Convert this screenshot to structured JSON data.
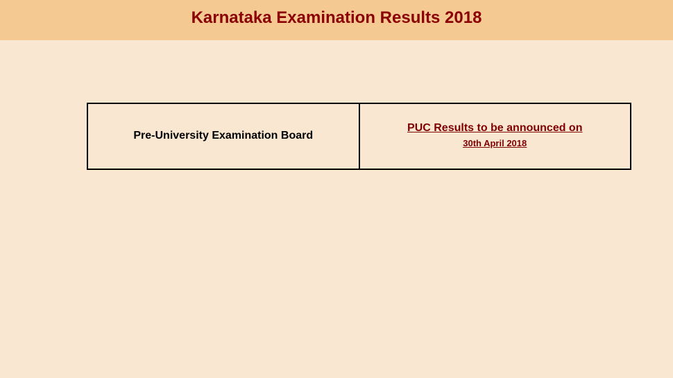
{
  "header": {
    "title": "Karnataka Examination Results 2018",
    "background_color": "#f5ca92",
    "title_color": "#8b0000",
    "title_fontsize": 24
  },
  "page": {
    "background_color": "#f9e7d2"
  },
  "results_table": {
    "border_color": "#000000",
    "rows": [
      {
        "board_name": "Pre-University Examination Board",
        "result_announcement": "PUC Results to be announced on",
        "result_date": "30th April 2018",
        "link_color": "#800000"
      }
    ]
  }
}
